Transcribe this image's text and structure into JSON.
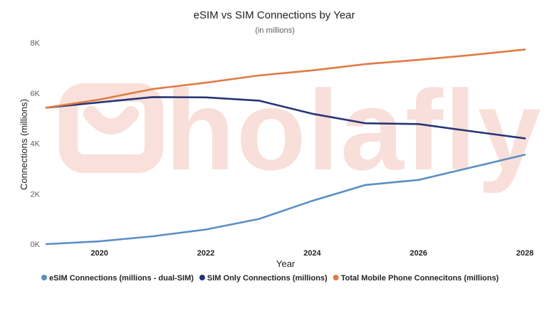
{
  "chart_data": {
    "type": "line",
    "title": "eSIM vs SIM Connections by Year",
    "subtitle": "(in millions)",
    "xlabel": "Year",
    "ylabel": "Connections (millions)",
    "xlim": [
      2019,
      2028
    ],
    "ylim": [
      0,
      8000
    ],
    "x": [
      2019,
      2020,
      2021,
      2022,
      2023,
      2024,
      2025,
      2026,
      2027,
      2028
    ],
    "x_ticks": [
      {
        "value": 2020,
        "label": "2020"
      },
      {
        "value": 2022,
        "label": "2022"
      },
      {
        "value": 2024,
        "label": "2024"
      },
      {
        "value": 2026,
        "label": "2026"
      },
      {
        "value": 2028,
        "label": "2028"
      }
    ],
    "y_ticks": [
      {
        "value": 0,
        "label": "0K"
      },
      {
        "value": 2000,
        "label": "2K"
      },
      {
        "value": 4000,
        "label": "4K"
      },
      {
        "value": 6000,
        "label": "6K"
      },
      {
        "value": 8000,
        "label": "8K"
      }
    ],
    "series": [
      {
        "key": "esim",
        "name": "eSIM Connections (millions - dual-SIM)",
        "color": "#5b8fc4",
        "values": [
          0,
          110,
          310,
          580,
          1000,
          1720,
          2350,
          2550,
          3050,
          3550
        ]
      },
      {
        "key": "sim-only",
        "name": "SIM Only Connections (millions)",
        "color": "#273577",
        "values": [
          5420,
          5630,
          5840,
          5830,
          5700,
          5180,
          4800,
          4770,
          4480,
          4200
        ]
      },
      {
        "key": "total",
        "name": "Total Mobile Phone Connecitons (millions)",
        "color": "#e07b45",
        "values": [
          5420,
          5740,
          6160,
          6410,
          6700,
          6900,
          7150,
          7320,
          7510,
          7730
        ]
      }
    ],
    "legend_position": "bottom",
    "watermark": "holafly"
  }
}
